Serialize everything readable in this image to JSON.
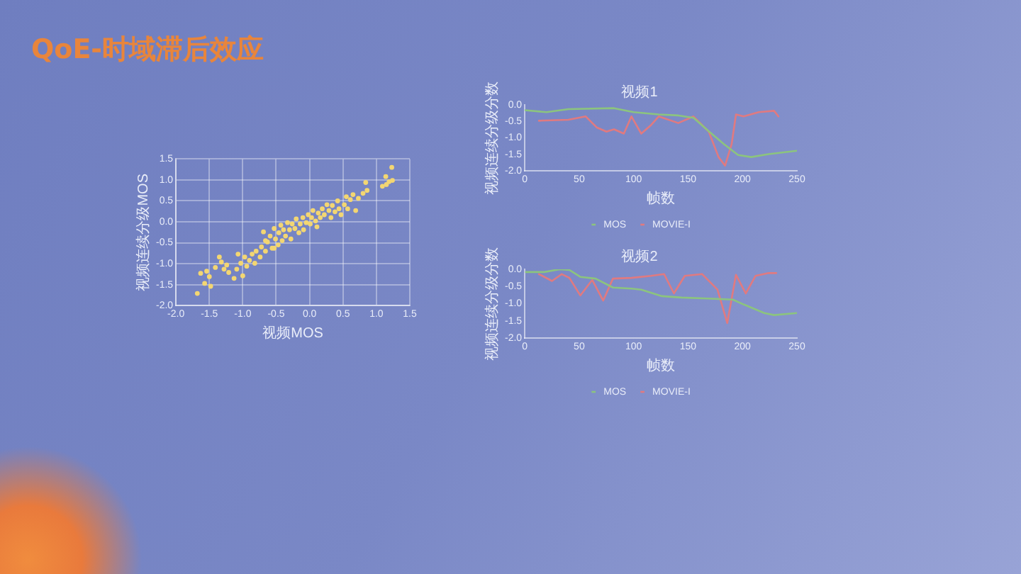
{
  "chart_data": [
    {
      "type": "scatter",
      "title": "QoE-时域滞后效应",
      "xlabel": "视频MOS",
      "ylabel": "视频连续分级MOS",
      "color": "#f3d672",
      "marker": "circle",
      "grid": true,
      "x": [
        -1.68,
        -1.63,
        -1.57,
        -1.54,
        -1.48,
        -1.5,
        -1.35,
        -1.32,
        -1.24,
        -1.13,
        -1.21,
        -1.09,
        -1.07,
        -1.03,
        -1.0,
        -0.97,
        -0.9,
        -0.86,
        -0.82,
        -0.8,
        -0.74,
        -0.72,
        -0.69,
        -0.66,
        -0.63,
        -0.59,
        -0.56,
        -0.53,
        -0.51,
        -0.47,
        -0.46,
        -0.43,
        -0.41,
        -0.39,
        -0.36,
        -0.33,
        -0.3,
        -0.28,
        -0.26,
        -0.22,
        -0.2,
        -0.16,
        -0.14,
        -0.1,
        -0.09,
        -0.05,
        -0.02,
        0.01,
        0.03,
        0.05,
        0.09,
        0.11,
        0.13,
        0.16,
        0.19,
        0.22,
        0.26,
        0.29,
        0.32,
        0.34,
        0.38,
        0.42,
        0.44,
        0.47,
        0.52,
        0.55,
        0.57,
        0.61,
        0.65,
        0.69,
        0.73,
        0.8,
        0.84,
        0.86,
        1.09,
        1.15,
        1.19,
        1.23,
        1.24,
        1.14,
        -0.66,
        -0.53,
        -0.94,
        -1.28,
        -1.41
      ],
      "values": [
        -1.71,
        -1.23,
        -1.47,
        -1.18,
        -1.54,
        -1.31,
        -0.84,
        -0.96,
        -1.03,
        -1.35,
        -1.21,
        -1.13,
        -0.77,
        -0.99,
        -1.29,
        -0.84,
        -0.92,
        -0.77,
        -0.99,
        -0.7,
        -0.84,
        -0.6,
        -0.24,
        -0.7,
        -0.48,
        -0.34,
        -0.63,
        -0.16,
        -0.41,
        -0.55,
        -0.26,
        -0.08,
        -0.45,
        -0.19,
        -0.34,
        -0.02,
        -0.19,
        -0.41,
        -0.05,
        -0.16,
        0.07,
        -0.26,
        -0.05,
        0.1,
        -0.19,
        -0.02,
        0.17,
        -0.05,
        0.1,
        0.27,
        0.02,
        -0.12,
        0.21,
        0.1,
        0.31,
        0.17,
        0.41,
        0.27,
        0.1,
        0.39,
        0.24,
        0.5,
        0.31,
        0.17,
        0.41,
        0.6,
        0.31,
        0.53,
        0.65,
        0.27,
        0.56,
        0.68,
        0.94,
        0.75,
        0.85,
        0.89,
        0.96,
        1.3,
        0.99,
        1.08,
        -0.45,
        -0.63,
        -1.06,
        -1.13,
        -1.09
      ],
      "xlim": [
        -2,
        1.5
      ],
      "xticks": [
        {
          "value": -2,
          "label": "-2.0"
        },
        -1.5,
        {
          "value": -1,
          "label": "-1.0"
        },
        -0.5,
        {
          "value": 0,
          "label": "0.0"
        },
        0.5,
        {
          "value": 1,
          "label": "1.0"
        },
        1.5
      ],
      "ylim": [
        -2,
        1.5
      ],
      "yticks": [
        {
          "value": -2,
          "label": "-2.0"
        },
        -1.5,
        {
          "value": -1,
          "label": "-1.0"
        },
        -0.5,
        {
          "value": 0,
          "label": "0.0"
        },
        0.5,
        {
          "value": 1,
          "label": "1.0"
        },
        1.5
      ]
    },
    {
      "type": "line",
      "title": "视频1",
      "xlabel": "帧数",
      "ylabel": "视频连续分级分数",
      "legend": "bottom",
      "marker": "none",
      "series": [
        {
          "name": "MOS",
          "color": "#8cc47e",
          "x": [
            0,
            20,
            40,
            82,
            100,
            123,
            141,
            155,
            169,
            183,
            196,
            208,
            224,
            250
          ],
          "values": [
            -0.16,
            -0.22,
            -0.13,
            -0.1,
            -0.22,
            -0.29,
            -0.32,
            -0.39,
            -0.8,
            -1.19,
            -1.52,
            -1.58,
            -1.49,
            -1.39
          ]
        },
        {
          "name": "MOVIE-I",
          "color": "#e07a80",
          "x": [
            13,
            40,
            56,
            66,
            75,
            82,
            91,
            98,
            107,
            116,
            123,
            141,
            155,
            169,
            178,
            184,
            190,
            194,
            201,
            215,
            229,
            233
          ],
          "values": [
            -0.48,
            -0.45,
            -0.35,
            -0.68,
            -0.81,
            -0.74,
            -0.87,
            -0.35,
            -0.87,
            -0.61,
            -0.35,
            -0.55,
            -0.35,
            -0.81,
            -1.58,
            -1.84,
            -1.19,
            -0.29,
            -0.35,
            -0.22,
            -0.18,
            -0.35
          ]
        }
      ],
      "xlim": [
        0,
        250
      ],
      "xticks": [
        0,
        50,
        100,
        150,
        200,
        250
      ],
      "ylim": [
        -2,
        0
      ],
      "yticks": [
        {
          "value": 0,
          "label": "0.0"
        },
        -0.5,
        {
          "value": -1,
          "label": "-1.0"
        },
        -1.5,
        {
          "value": -2,
          "label": "-2.0"
        }
      ]
    },
    {
      "type": "line",
      "title": "视频2",
      "xlabel": "帧数",
      "ylabel": "视频连续分级分数",
      "legend": "bottom",
      "marker": "none",
      "series": [
        {
          "name": "MOS",
          "color": "#8cc47e",
          "x": [
            1,
            18,
            32,
            41,
            51,
            65,
            81,
            98,
            107,
            126,
            144,
            168,
            191,
            201,
            220,
            229,
            250
          ],
          "values": [
            -0.08,
            -0.08,
            0.0,
            -0.02,
            -0.22,
            -0.27,
            -0.53,
            -0.56,
            -0.59,
            -0.78,
            -0.82,
            -0.85,
            -0.88,
            -1.02,
            -1.27,
            -1.33,
            -1.27
          ]
        },
        {
          "name": "MOVIE-I",
          "color": "#e07a80",
          "x": [
            13,
            25,
            34,
            41,
            51,
            62,
            72,
            81,
            98,
            116,
            128,
            137,
            147,
            163,
            177,
            186,
            194,
            203,
            212,
            224,
            231
          ],
          "values": [
            -0.14,
            -0.34,
            -0.14,
            -0.25,
            -0.76,
            -0.31,
            -0.91,
            -0.27,
            -0.25,
            -0.19,
            -0.14,
            -0.7,
            -0.19,
            -0.14,
            -0.59,
            -1.56,
            -0.16,
            -0.7,
            -0.19,
            -0.11,
            -0.11
          ]
        }
      ],
      "xlim": [
        0,
        250
      ],
      "xticks": [
        0,
        50,
        100,
        150,
        200,
        250
      ],
      "ylim": [
        -2,
        0
      ],
      "yticks": [
        {
          "value": 0,
          "label": "0.0"
        },
        -0.5,
        {
          "value": -1,
          "label": "-1.0"
        },
        -1.5,
        {
          "value": -2,
          "label": "-2.0"
        }
      ]
    }
  ]
}
